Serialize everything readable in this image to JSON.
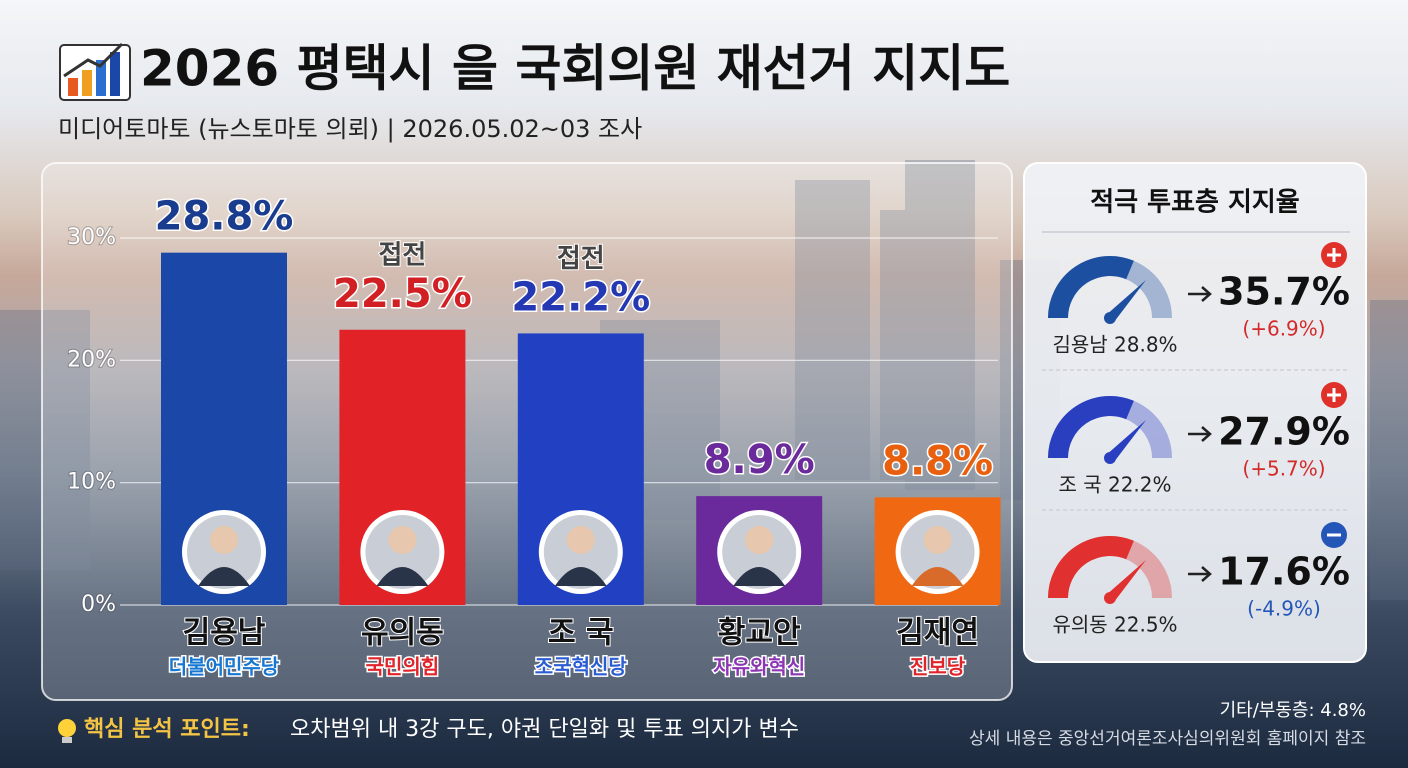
{
  "header": {
    "title": "2026 평택시 을 국회의원 재선거 지지도",
    "subtitle": "미디어토마토 (뉴스토마토 의뢰) | 2026.05.02~03 조사"
  },
  "chart_data": {
    "type": "bar",
    "categories": [
      "김용남",
      "유의동",
      "조  국",
      "황교안",
      "김재연"
    ],
    "parties": [
      "더불어민주당",
      "국민의힘",
      "조국혁신당",
      "자유와혁신",
      "진보당"
    ],
    "values": [
      28.8,
      22.5,
      22.2,
      8.9,
      8.8
    ],
    "value_labels": [
      "28.8%",
      "22.5%",
      "22.2%",
      "8.9%",
      "8.8%"
    ],
    "colors": [
      "#1b47a8",
      "#e12328",
      "#2140c2",
      "#6b2a9b",
      "#f06812"
    ],
    "label_colors": [
      "#1a3c8e",
      "#d21f24",
      "#2538b4",
      "#6b2a9b",
      "#e8600e"
    ],
    "party_colors": [
      "#1677d2",
      "#e0242a",
      "#2a5cd4",
      "#8d36b4",
      "#e0242a"
    ],
    "annotations": [
      {
        "category": "유의동",
        "text": "접전"
      },
      {
        "category": "조  국",
        "text": "접전"
      }
    ],
    "ylim": [
      0,
      30
    ],
    "yticks": [
      {
        "value": 0,
        "label": "0%"
      },
      {
        "value": 10,
        "label": "10%"
      },
      {
        "value": 20,
        "label": "20%"
      },
      {
        "value": 30,
        "label": "30%"
      }
    ],
    "grid": true
  },
  "side_panel": {
    "title": "적극 투표층 지지율",
    "items": [
      {
        "label": "김용남 28.8%",
        "value": "35.7%",
        "change": "(+6.9%)",
        "color": "#1d4fa0",
        "change_color": "#d42a2a",
        "sign": "plus"
      },
      {
        "label": "조  국 22.2%",
        "value": "27.9%",
        "change": "(+5.7%)",
        "color": "#2a3fc0",
        "change_color": "#d42a2a",
        "sign": "plus"
      },
      {
        "label": "유의동 22.5%",
        "value": "17.6%",
        "change": "(-4.9%)",
        "color": "#e03030",
        "change_color": "#2456b8",
        "sign": "minus"
      }
    ]
  },
  "footer": {
    "key_label": "핵심 분석 포인트:",
    "key_text": "오차범위 내 3강 구도, 야권 단일화 및 투표 의지가 변수",
    "other": "기타/부동층: 4.8%",
    "source": "상세 내용은 중앙선거여론조사심의위원회 홈페이지 참조"
  }
}
